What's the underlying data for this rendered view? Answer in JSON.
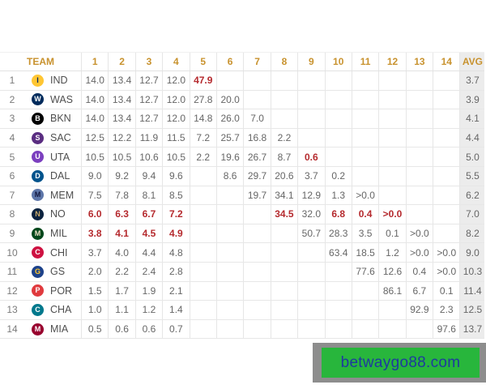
{
  "table": {
    "header": {
      "team": "TEAM",
      "picks": [
        "1",
        "2",
        "3",
        "4",
        "5",
        "6",
        "7",
        "8",
        "9",
        "10",
        "11",
        "12",
        "13",
        "14"
      ],
      "avg": "AVG"
    },
    "rows": [
      {
        "rank": "1",
        "team": "IND",
        "logo": {
          "letter": "I",
          "bg": "#ffc633",
          "fg": "#002d62"
        },
        "picks": [
          "14.0",
          "13.4",
          "12.7",
          "12.0",
          "47.9",
          "",
          "",
          "",
          "",
          "",
          "",
          "",
          "",
          ""
        ],
        "red_picks": [
          4
        ],
        "avg": "3.7"
      },
      {
        "rank": "2",
        "team": "WAS",
        "logo": {
          "letter": "W",
          "bg": "#002b5c",
          "fg": "#ffffff"
        },
        "picks": [
          "14.0",
          "13.4",
          "12.7",
          "12.0",
          "27.8",
          "20.0",
          "",
          "",
          "",
          "",
          "",
          "",
          "",
          ""
        ],
        "red_picks": [],
        "avg": "3.9"
      },
      {
        "rank": "3",
        "team": "BKN",
        "logo": {
          "letter": "B",
          "bg": "#000000",
          "fg": "#ffffff"
        },
        "picks": [
          "14.0",
          "13.4",
          "12.7",
          "12.0",
          "14.8",
          "26.0",
          "7.0",
          "",
          "",
          "",
          "",
          "",
          "",
          ""
        ],
        "red_picks": [],
        "avg": "4.1"
      },
      {
        "rank": "4",
        "team": "SAC",
        "logo": {
          "letter": "S",
          "bg": "#5a2d81",
          "fg": "#ffffff"
        },
        "picks": [
          "12.5",
          "12.2",
          "11.9",
          "11.5",
          "7.2",
          "25.7",
          "16.8",
          "2.2",
          "",
          "",
          "",
          "",
          "",
          ""
        ],
        "red_picks": [],
        "avg": "4.4"
      },
      {
        "rank": "5",
        "team": "UTA",
        "logo": {
          "letter": "U",
          "bg": "#7b3fbf",
          "fg": "#ffffff"
        },
        "picks": [
          "10.5",
          "10.5",
          "10.6",
          "10.5",
          "2.2",
          "19.6",
          "26.7",
          "8.7",
          "0.6",
          "",
          "",
          "",
          "",
          ""
        ],
        "red_picks": [
          8
        ],
        "avg": "5.0"
      },
      {
        "rank": "6",
        "team": "DAL",
        "logo": {
          "letter": "D",
          "bg": "#00538c",
          "fg": "#ffffff"
        },
        "picks": [
          "9.0",
          "9.2",
          "9.4",
          "9.6",
          "",
          "8.6",
          "29.7",
          "20.6",
          "3.7",
          "0.2",
          "",
          "",
          "",
          ""
        ],
        "red_picks": [],
        "avg": "5.5"
      },
      {
        "rank": "7",
        "team": "MEM",
        "logo": {
          "letter": "M",
          "bg": "#5d76a9",
          "fg": "#12173f"
        },
        "picks": [
          "7.5",
          "7.8",
          "8.1",
          "8.5",
          "",
          "",
          "19.7",
          "34.1",
          "12.9",
          "1.3",
          ">0.0",
          "",
          "",
          ""
        ],
        "red_picks": [],
        "avg": "6.2"
      },
      {
        "rank": "8",
        "team": "NO",
        "logo": {
          "letter": "N",
          "bg": "#0c2340",
          "fg": "#c8a96a"
        },
        "picks": [
          "6.0",
          "6.3",
          "6.7",
          "7.2",
          "",
          "",
          "",
          "34.5",
          "32.0",
          "6.8",
          "0.4",
          ">0.0",
          "",
          ""
        ],
        "red_picks": [
          0,
          1,
          2,
          3,
          7,
          9,
          10,
          11
        ],
        "avg": "7.0"
      },
      {
        "rank": "9",
        "team": "MIL",
        "logo": {
          "letter": "M",
          "bg": "#00471b",
          "fg": "#eee1c6"
        },
        "picks": [
          "3.8",
          "4.1",
          "4.5",
          "4.9",
          "",
          "",
          "",
          "",
          "50.7",
          "28.3",
          "3.5",
          "0.1",
          ">0.0",
          ""
        ],
        "red_picks": [
          0,
          1,
          2,
          3
        ],
        "avg": "8.2"
      },
      {
        "rank": "10",
        "team": "CHI",
        "logo": {
          "letter": "C",
          "bg": "#ce1141",
          "fg": "#ffffff"
        },
        "picks": [
          "3.7",
          "4.0",
          "4.4",
          "4.8",
          "",
          "",
          "",
          "",
          "",
          "63.4",
          "18.5",
          "1.2",
          ">0.0",
          ">0.0"
        ],
        "red_picks": [],
        "avg": "9.0"
      },
      {
        "rank": "11",
        "team": "GS",
        "logo": {
          "letter": "G",
          "bg": "#1d428a",
          "fg": "#ffc72c"
        },
        "picks": [
          "2.0",
          "2.2",
          "2.4",
          "2.8",
          "",
          "",
          "",
          "",
          "",
          "",
          "77.6",
          "12.6",
          "0.4",
          ">0.0"
        ],
        "red_picks": [],
        "avg": "10.3"
      },
      {
        "rank": "12",
        "team": "POR",
        "logo": {
          "letter": "P",
          "bg": "#e03a3e",
          "fg": "#ffffff"
        },
        "picks": [
          "1.5",
          "1.7",
          "1.9",
          "2.1",
          "",
          "",
          "",
          "",
          "",
          "",
          "",
          "86.1",
          "6.7",
          "0.1"
        ],
        "red_picks": [],
        "avg": "11.4"
      },
      {
        "rank": "13",
        "team": "CHA",
        "logo": {
          "letter": "C",
          "bg": "#00788c",
          "fg": "#ffffff"
        },
        "picks": [
          "1.0",
          "1.1",
          "1.2",
          "1.4",
          "",
          "",
          "",
          "",
          "",
          "",
          "",
          "",
          "92.9",
          "2.3"
        ],
        "red_picks": [],
        "avg": "12.5"
      },
      {
        "rank": "14",
        "team": "MIA",
        "logo": {
          "letter": "M",
          "bg": "#98002e",
          "fg": "#ffffff"
        },
        "picks": [
          "0.5",
          "0.6",
          "0.6",
          "0.7",
          "",
          "",
          "",
          "",
          "",
          "",
          "",
          "",
          "",
          "97.6"
        ],
        "red_picks": [],
        "avg": "13.7"
      }
    ]
  },
  "banner": {
    "text": "betwaygo88.com",
    "bg": "#28b63c",
    "frame": "#8d8d8d",
    "text_color": "#1e3a9e"
  },
  "colors": {
    "header_text": "#c8922e",
    "value_text": "#666666",
    "red_value_text": "#b52a2e",
    "grid_line": "#e6e6e6",
    "avg_column_bg": "#ececec"
  }
}
